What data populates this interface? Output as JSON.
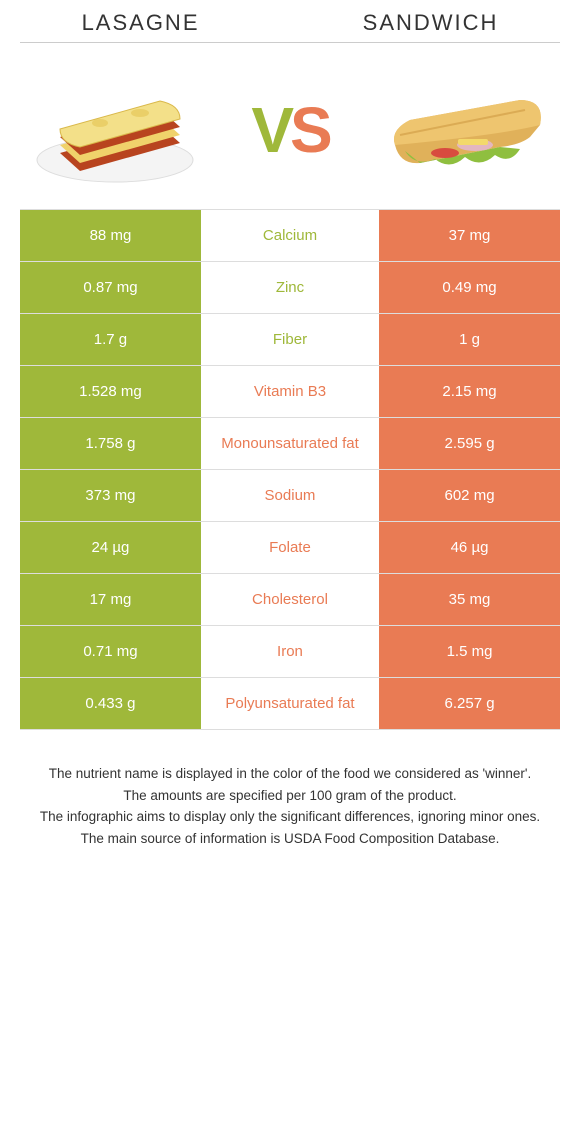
{
  "header": {
    "left": "LASAGNE",
    "right": "SANDWICH"
  },
  "vs": {
    "v": "V",
    "s": "S"
  },
  "colors": {
    "left": "#9fb83a",
    "right": "#e97b54",
    "border": "#dddddd",
    "text": "#333333",
    "bg": "#ffffff"
  },
  "rows": [
    {
      "left": "88 mg",
      "label": "Calcium",
      "right": "37 mg",
      "winner": "left"
    },
    {
      "left": "0.87 mg",
      "label": "Zinc",
      "right": "0.49 mg",
      "winner": "left"
    },
    {
      "left": "1.7 g",
      "label": "Fiber",
      "right": "1 g",
      "winner": "left"
    },
    {
      "left": "1.528 mg",
      "label": "Vitamin B3",
      "right": "2.15 mg",
      "winner": "right"
    },
    {
      "left": "1.758 g",
      "label": "Monounsaturated fat",
      "right": "2.595 g",
      "winner": "right"
    },
    {
      "left": "373 mg",
      "label": "Sodium",
      "right": "602 mg",
      "winner": "right"
    },
    {
      "left": "24 µg",
      "label": "Folate",
      "right": "46 µg",
      "winner": "right"
    },
    {
      "left": "17 mg",
      "label": "Cholesterol",
      "right": "35 mg",
      "winner": "right"
    },
    {
      "left": "0.71 mg",
      "label": "Iron",
      "right": "1.5 mg",
      "winner": "right"
    },
    {
      "left": "0.433 g",
      "label": "Polyunsaturated fat",
      "right": "6.257 g",
      "winner": "right"
    }
  ],
  "footer": [
    "The nutrient name is displayed in the color of the food we considered as 'winner'.",
    "The amounts are specified per 100 gram of the product.",
    "The infographic aims to display only the significant differences, ignoring minor ones.",
    "The main source of information is USDA Food Composition Database."
  ]
}
